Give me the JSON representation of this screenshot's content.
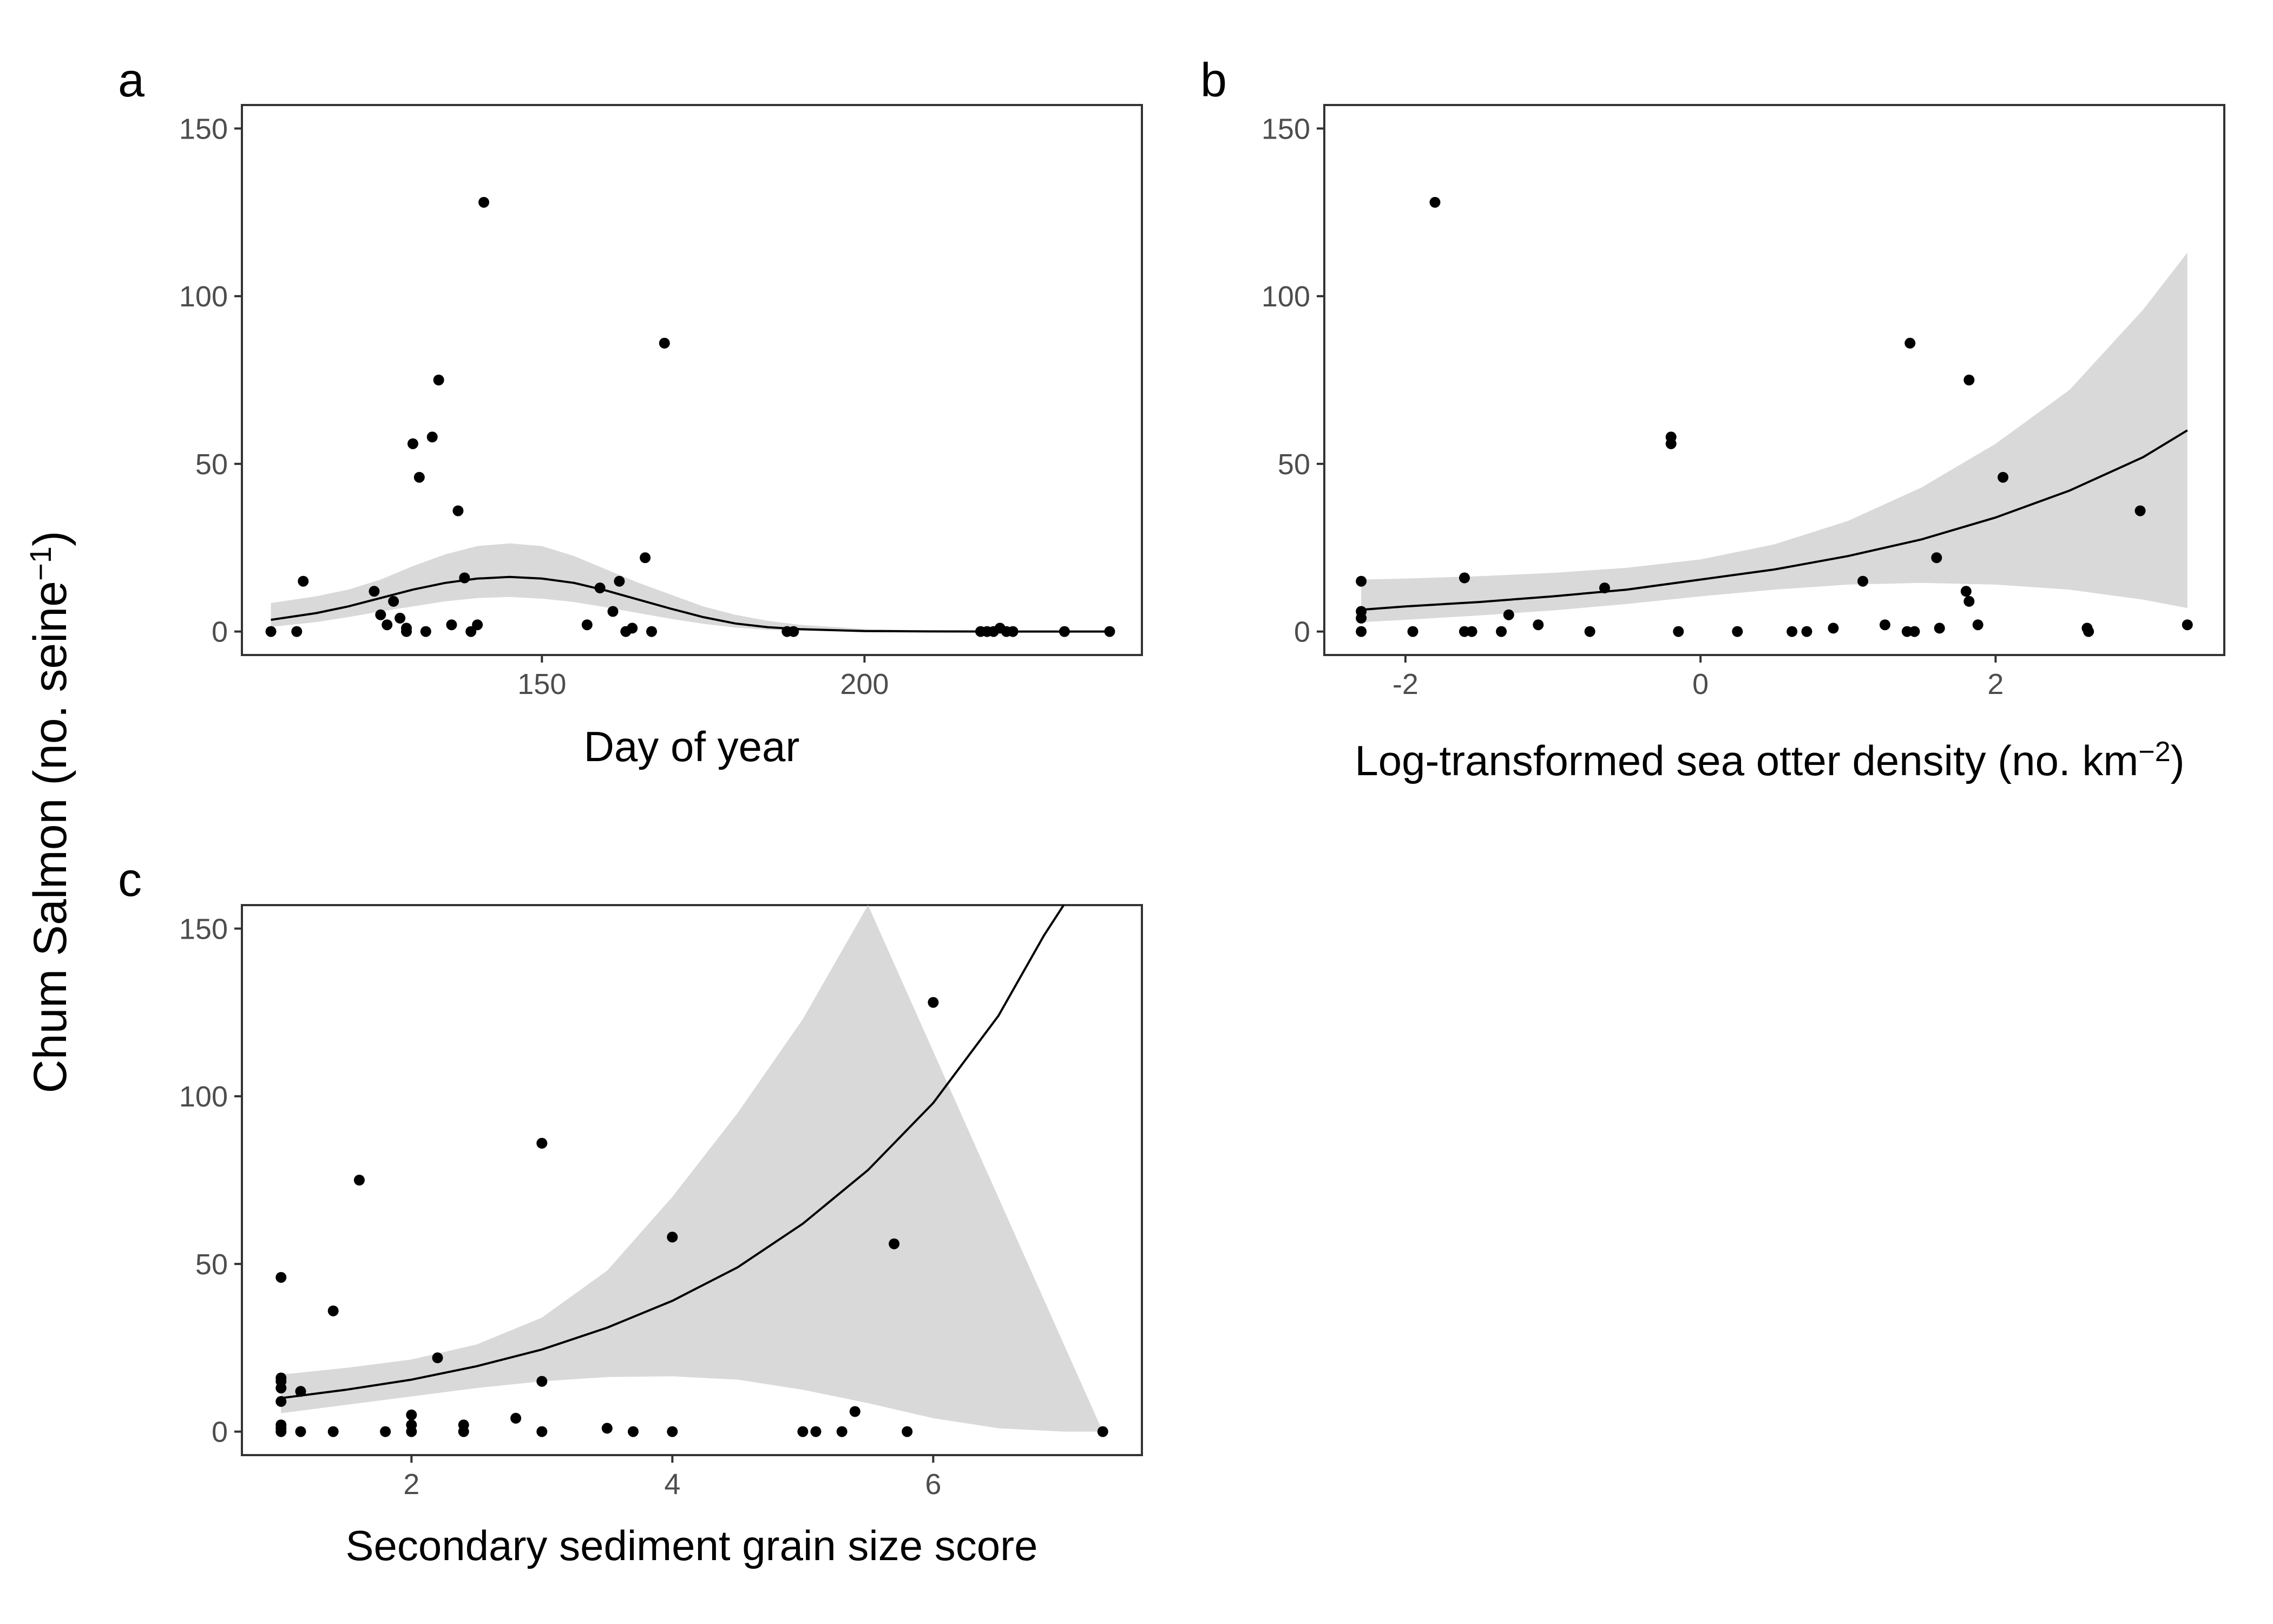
{
  "y_title": {
    "main": "Chum Salmon (no. seine",
    "sup": "−1",
    "close": ")"
  },
  "chart_data": [
    {
      "panel": "a",
      "type": "scatter",
      "xlabel": {
        "main": "Day of year",
        "sup": "",
        "close": ""
      },
      "ylabel": "Chum Salmon (no. seine−1)",
      "xlim": [
        103.5,
        243
      ],
      "ylim": [
        -7,
        157
      ],
      "xticks": [
        150,
        200
      ],
      "xtick_labels": [
        "150",
        "200"
      ],
      "yticks": [
        0,
        50,
        100,
        150
      ],
      "ytick_labels": [
        "0",
        "50",
        "100",
        "150"
      ],
      "grid": false,
      "points": [
        [
          108,
          0
        ],
        [
          112,
          0
        ],
        [
          113,
          15
        ],
        [
          124,
          12
        ],
        [
          125,
          5
        ],
        [
          126,
          2
        ],
        [
          127,
          9
        ],
        [
          128,
          4
        ],
        [
          129,
          1
        ],
        [
          129,
          0
        ],
        [
          130,
          56
        ],
        [
          131,
          46
        ],
        [
          132,
          0
        ],
        [
          133,
          58
        ],
        [
          134,
          75
        ],
        [
          136,
          2
        ],
        [
          137,
          36
        ],
        [
          138,
          16
        ],
        [
          139,
          0
        ],
        [
          140,
          2
        ],
        [
          141,
          128
        ],
        [
          157,
          2
        ],
        [
          159,
          13
        ],
        [
          161,
          6
        ],
        [
          162,
          15
        ],
        [
          163,
          0
        ],
        [
          164,
          1
        ],
        [
          166,
          22
        ],
        [
          167,
          0
        ],
        [
          169,
          86
        ],
        [
          188,
          0
        ],
        [
          189,
          0
        ],
        [
          218,
          0
        ],
        [
          219,
          0
        ],
        [
          220,
          0
        ],
        [
          221,
          1
        ],
        [
          222,
          0
        ],
        [
          223,
          0
        ],
        [
          231,
          0
        ],
        [
          238,
          0
        ]
      ],
      "fit_line": [
        [
          108,
          3.5
        ],
        [
          115,
          5.5
        ],
        [
          120,
          7.5
        ],
        [
          125,
          10
        ],
        [
          130,
          12.5
        ],
        [
          135,
          14.5
        ],
        [
          140,
          15.8
        ],
        [
          145,
          16.3
        ],
        [
          150,
          15.8
        ],
        [
          155,
          14.5
        ],
        [
          160,
          12.2
        ],
        [
          165,
          9.5
        ],
        [
          170,
          6.8
        ],
        [
          175,
          4.3
        ],
        [
          180,
          2.4
        ],
        [
          185,
          1.3
        ],
        [
          190,
          0.7
        ],
        [
          200,
          0.15
        ],
        [
          210,
          0.04
        ],
        [
          220,
          0.01
        ],
        [
          238,
          0
        ]
      ],
      "ci_upper": [
        [
          108,
          8.5
        ],
        [
          115,
          10.5
        ],
        [
          120,
          12.5
        ],
        [
          125,
          15.5
        ],
        [
          130,
          19.5
        ],
        [
          135,
          23
        ],
        [
          140,
          25.5
        ],
        [
          145,
          26.3
        ],
        [
          150,
          25.5
        ],
        [
          155,
          22.5
        ],
        [
          160,
          18.5
        ],
        [
          165,
          14.5
        ],
        [
          170,
          11
        ],
        [
          175,
          7.5
        ],
        [
          180,
          5
        ],
        [
          185,
          3.2
        ],
        [
          190,
          2
        ],
        [
          200,
          0.8
        ],
        [
          210,
          0.3
        ],
        [
          220,
          0.1
        ],
        [
          238,
          0.05
        ]
      ],
      "ci_lower": [
        [
          108,
          1.4
        ],
        [
          115,
          2.8
        ],
        [
          120,
          4.3
        ],
        [
          125,
          6
        ],
        [
          130,
          7.5
        ],
        [
          135,
          9
        ],
        [
          140,
          10
        ],
        [
          145,
          10.3
        ],
        [
          150,
          9.8
        ],
        [
          155,
          8.8
        ],
        [
          160,
          7.2
        ],
        [
          165,
          5.5
        ],
        [
          170,
          3.8
        ],
        [
          175,
          2.3
        ],
        [
          180,
          1.2
        ],
        [
          185,
          0.5
        ],
        [
          190,
          0.2
        ],
        [
          200,
          0.03
        ],
        [
          210,
          0
        ],
        [
          220,
          0
        ],
        [
          238,
          0
        ]
      ]
    },
    {
      "panel": "b",
      "type": "scatter",
      "xlabel": {
        "main": "Log-transformed sea otter density (no. km",
        "sup": "−2",
        "close": ")"
      },
      "ylabel": "Chum Salmon (no. seine−1)",
      "xlim": [
        -2.55,
        3.55
      ],
      "ylim": [
        -7,
        157
      ],
      "xticks": [
        -2,
        0,
        2
      ],
      "xtick_labels": [
        "-2",
        "0",
        "2"
      ],
      "yticks": [
        0,
        50,
        100,
        150
      ],
      "ytick_labels": [
        "0",
        "50",
        "100",
        "150"
      ],
      "grid": false,
      "points": [
        [
          -2.3,
          15
        ],
        [
          -2.3,
          6
        ],
        [
          -2.3,
          4
        ],
        [
          -2.3,
          0
        ],
        [
          -1.95,
          0
        ],
        [
          -1.8,
          128
        ],
        [
          -1.6,
          16
        ],
        [
          -1.6,
          0
        ],
        [
          -1.55,
          0
        ],
        [
          -1.35,
          0
        ],
        [
          -1.3,
          5
        ],
        [
          -1.1,
          2
        ],
        [
          -0.75,
          0
        ],
        [
          -0.65,
          13
        ],
        [
          -0.2,
          56
        ],
        [
          -0.2,
          58
        ],
        [
          -0.15,
          0
        ],
        [
          0.25,
          0
        ],
        [
          0.62,
          0
        ],
        [
          0.72,
          0
        ],
        [
          0.9,
          1
        ],
        [
          1.1,
          15
        ],
        [
          1.25,
          2
        ],
        [
          1.4,
          0
        ],
        [
          1.42,
          86
        ],
        [
          1.45,
          0
        ],
        [
          1.6,
          22
        ],
        [
          1.62,
          1
        ],
        [
          1.8,
          12
        ],
        [
          1.82,
          75
        ],
        [
          1.82,
          9
        ],
        [
          1.88,
          2
        ],
        [
          2.05,
          46
        ],
        [
          2.62,
          1
        ],
        [
          2.63,
          0
        ],
        [
          2.98,
          36
        ],
        [
          3.3,
          2
        ]
      ],
      "fit_line": [
        [
          -2.3,
          6.5
        ],
        [
          -2,
          7.5
        ],
        [
          -1.5,
          8.8
        ],
        [
          -1,
          10.5
        ],
        [
          -0.5,
          12.5
        ],
        [
          0,
          15.5
        ],
        [
          0.5,
          18.5
        ],
        [
          1,
          22.5
        ],
        [
          1.5,
          27.5
        ],
        [
          2,
          34
        ],
        [
          2.5,
          42
        ],
        [
          3,
          52
        ],
        [
          3.3,
          60
        ]
      ],
      "ci_upper": [
        [
          -2.3,
          15.5
        ],
        [
          -2,
          15.8
        ],
        [
          -1.5,
          16.5
        ],
        [
          -1,
          17.5
        ],
        [
          -0.5,
          19
        ],
        [
          0,
          21.5
        ],
        [
          0.5,
          26
        ],
        [
          1,
          33
        ],
        [
          1.5,
          43
        ],
        [
          2,
          56
        ],
        [
          2.5,
          72
        ],
        [
          3,
          96
        ],
        [
          3.3,
          113
        ]
      ],
      "ci_lower": [
        [
          -2.3,
          2.8
        ],
        [
          -2,
          3.5
        ],
        [
          -1.5,
          4.8
        ],
        [
          -1,
          6.3
        ],
        [
          -0.5,
          8.2
        ],
        [
          0,
          10.5
        ],
        [
          0.5,
          12.5
        ],
        [
          1,
          14
        ],
        [
          1.5,
          14.5
        ],
        [
          2,
          14
        ],
        [
          2.5,
          12.5
        ],
        [
          3,
          9.5
        ],
        [
          3.3,
          7
        ]
      ]
    },
    {
      "panel": "c",
      "type": "scatter",
      "xlabel": {
        "main": "Secondary sediment grain size score",
        "sup": "",
        "close": ""
      },
      "ylabel": "Chum Salmon (no. seine−1)",
      "xlim": [
        0.7,
        7.6
      ],
      "ylim": [
        -7,
        157
      ],
      "xticks": [
        2,
        4,
        6
      ],
      "xtick_labels": [
        "2",
        "4",
        "6"
      ],
      "yticks": [
        0,
        50,
        100,
        150
      ],
      "ytick_labels": [
        "0",
        "50",
        "100",
        "150"
      ],
      "grid": false,
      "points": [
        [
          1,
          46
        ],
        [
          1,
          16
        ],
        [
          1,
          15
        ],
        [
          1,
          13
        ],
        [
          1,
          9
        ],
        [
          1,
          2
        ],
        [
          1,
          1
        ],
        [
          1,
          0
        ],
        [
          1.15,
          12
        ],
        [
          1.15,
          0
        ],
        [
          1.4,
          36
        ],
        [
          1.4,
          0
        ],
        [
          1.6,
          75
        ],
        [
          1.8,
          0
        ],
        [
          2,
          5
        ],
        [
          2,
          2
        ],
        [
          2,
          0
        ],
        [
          2.2,
          22
        ],
        [
          2.4,
          2
        ],
        [
          2.4,
          0
        ],
        [
          2.8,
          4
        ],
        [
          3,
          86
        ],
        [
          3,
          15
        ],
        [
          3,
          0
        ],
        [
          3.5,
          1
        ],
        [
          3.7,
          0
        ],
        [
          4,
          58
        ],
        [
          4,
          0
        ],
        [
          5,
          0
        ],
        [
          5.1,
          0
        ],
        [
          5.3,
          0
        ],
        [
          5.4,
          6
        ],
        [
          5.7,
          56
        ],
        [
          5.8,
          0
        ],
        [
          6,
          128
        ],
        [
          7.3,
          0
        ]
      ],
      "fit_line": [
        [
          1,
          10
        ],
        [
          1.5,
          12.5
        ],
        [
          2,
          15.5
        ],
        [
          2.5,
          19.5
        ],
        [
          3,
          24.5
        ],
        [
          3.5,
          31
        ],
        [
          4,
          39
        ],
        [
          4.5,
          49
        ],
        [
          5,
          62
        ],
        [
          5.5,
          78
        ],
        [
          6,
          98
        ],
        [
          6.5,
          124
        ],
        [
          6.85,
          148
        ],
        [
          7,
          157
        ]
      ],
      "ci_upper": [
        [
          1,
          17
        ],
        [
          1.5,
          19
        ],
        [
          2,
          21.5
        ],
        [
          2.5,
          26
        ],
        [
          3,
          34
        ],
        [
          3.5,
          48
        ],
        [
          4,
          70
        ],
        [
          4.5,
          95
        ],
        [
          5,
          123
        ],
        [
          5.5,
          157
        ]
      ],
      "ci_lower": [
        [
          1,
          5.5
        ],
        [
          1.5,
          8
        ],
        [
          2,
          10.5
        ],
        [
          2.5,
          13
        ],
        [
          3,
          15
        ],
        [
          3.5,
          16.3
        ],
        [
          4,
          16.5
        ],
        [
          4.5,
          15.5
        ],
        [
          5,
          12.5
        ],
        [
          5.5,
          8.5
        ],
        [
          6,
          4
        ],
        [
          6.5,
          1
        ],
        [
          7,
          0
        ],
        [
          7.3,
          0
        ]
      ]
    }
  ]
}
